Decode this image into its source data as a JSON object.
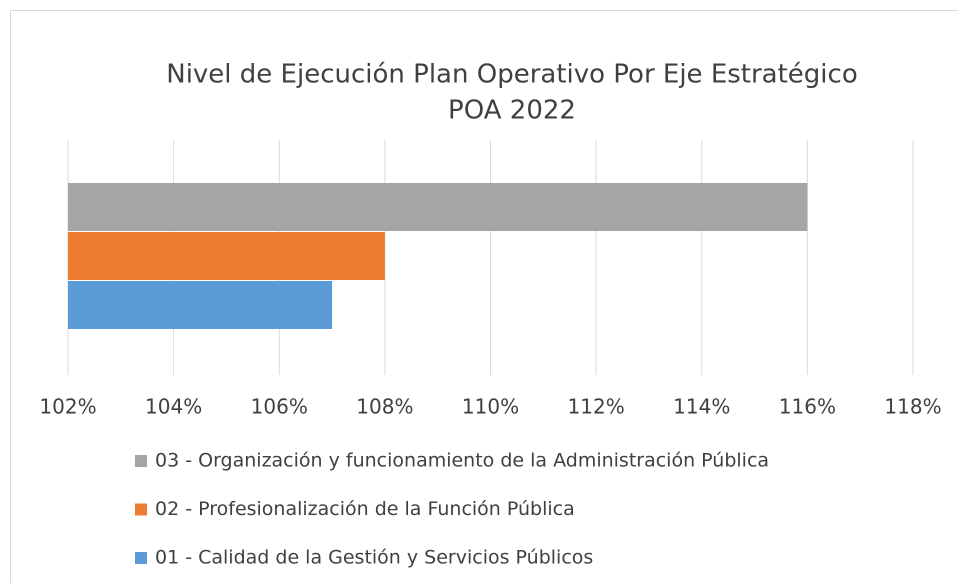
{
  "chart_data": {
    "type": "hbar",
    "title": [
      "Nivel  de Ejecución Plan Operativo Por Eje Estratégico",
      "POA 2022"
    ],
    "categories": [
      null
    ],
    "series": [
      {
        "name": "03 - Organización y funcionamiento de la Administración Pública",
        "color": "#a5a5a5",
        "values": [
          116
        ]
      },
      {
        "name": "02 - Profesionalización de la Función Pública",
        "color": "#ed7d31",
        "values": [
          108
        ]
      },
      {
        "name": "01 - Calidad de la Gestión y Servicios Públicos",
        "color": "#5b9bd5",
        "values": [
          107
        ]
      }
    ],
    "xlim": [
      102,
      118
    ],
    "xticks": [
      {
        "value": 102,
        "label": "102%"
      },
      {
        "value": 104,
        "label": "104%"
      },
      {
        "value": 106,
        "label": "106%"
      },
      {
        "value": 108,
        "label": "108%"
      },
      {
        "value": 110,
        "label": "110%"
      },
      {
        "value": 112,
        "label": "112%"
      },
      {
        "value": 114,
        "label": "114%"
      },
      {
        "value": 116,
        "label": "116%"
      },
      {
        "value": 118,
        "label": "118%"
      }
    ],
    "grid": true,
    "legend": "bottom"
  }
}
